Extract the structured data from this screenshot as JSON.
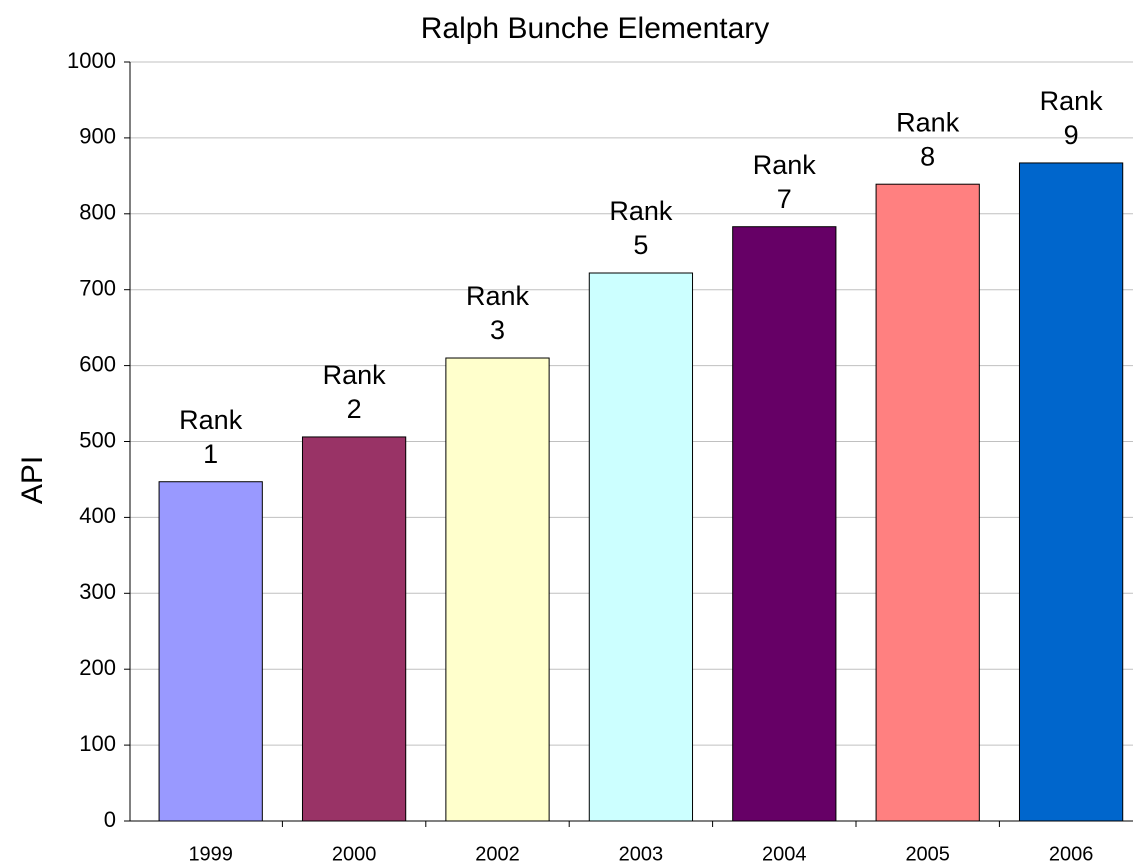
{
  "chart_data": {
    "type": "bar",
    "title": "Ralph Bunche Elementary",
    "y_label": "API",
    "categories": [
      "1999",
      "2000",
      "2002",
      "2003",
      "2004",
      "2005",
      "2006"
    ],
    "values": [
      447,
      506,
      610,
      722,
      783,
      839,
      867
    ],
    "colors": [
      "#9999ff",
      "#993366",
      "#ffffcc",
      "#ccffff",
      "#660066",
      "#ff8080",
      "#0066cc"
    ],
    "bar_labels": [
      [
        "Rank",
        "1"
      ],
      [
        "Rank",
        "2"
      ],
      [
        "Rank",
        "3"
      ],
      [
        "Rank",
        "5"
      ],
      [
        "Rank",
        "7"
      ],
      [
        "Rank",
        "8"
      ],
      [
        "Rank",
        "9"
      ]
    ],
    "ylim": [
      0,
      1000
    ],
    "yticks": [
      0,
      100,
      200,
      300,
      400,
      500,
      600,
      700,
      800,
      900,
      1000
    ],
    "grid": true
  }
}
